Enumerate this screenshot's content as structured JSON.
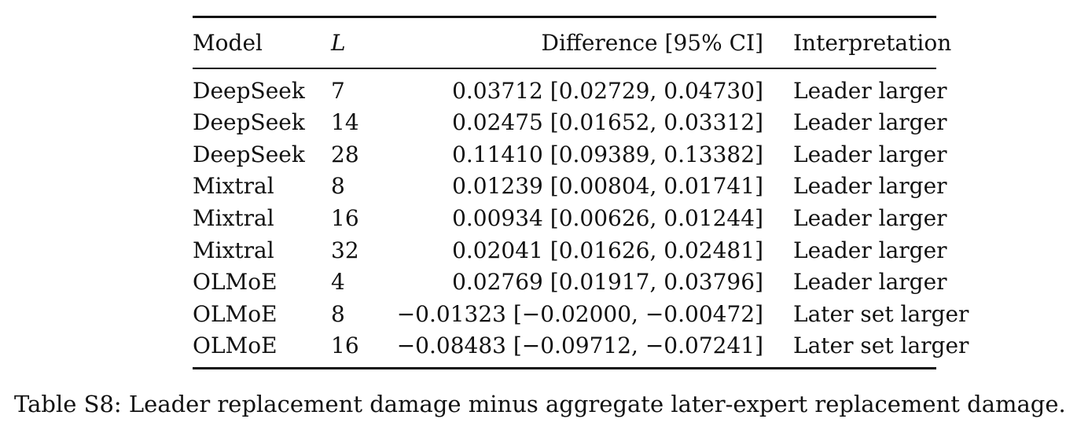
{
  "table": {
    "headers": {
      "model": "Model",
      "l": "L",
      "difference": "Difference [95% CI]",
      "interpretation": "Interpretation"
    },
    "rows": [
      {
        "model": "DeepSeek",
        "l": "7",
        "difference": "0.03712 [0.02729, 0.04730]",
        "interpretation": "Leader larger"
      },
      {
        "model": "DeepSeek",
        "l": "14",
        "difference": "0.02475 [0.01652, 0.03312]",
        "interpretation": "Leader larger"
      },
      {
        "model": "DeepSeek",
        "l": "28",
        "difference": "0.11410 [0.09389, 0.13382]",
        "interpretation": "Leader larger"
      },
      {
        "model": "Mixtral",
        "l": "8",
        "difference": "0.01239 [0.00804, 0.01741]",
        "interpretation": "Leader larger"
      },
      {
        "model": "Mixtral",
        "l": "16",
        "difference": "0.00934 [0.00626, 0.01244]",
        "interpretation": "Leader larger"
      },
      {
        "model": "Mixtral",
        "l": "32",
        "difference": "0.02041 [0.01626, 0.02481]",
        "interpretation": "Leader larger"
      },
      {
        "model": "OLMoE",
        "l": "4",
        "difference": "0.02769 [0.01917, 0.03796]",
        "interpretation": "Leader larger"
      },
      {
        "model": "OLMoE",
        "l": "8",
        "difference": "−0.01323 [−0.02000, −0.00472]",
        "interpretation": "Later set larger"
      },
      {
        "model": "OLMoE",
        "l": "16",
        "difference": "−0.08483 [−0.09712, −0.07241]",
        "interpretation": "Later set larger"
      }
    ]
  },
  "caption": "Table S8: Leader replacement damage minus aggregate later-expert replacement damage."
}
